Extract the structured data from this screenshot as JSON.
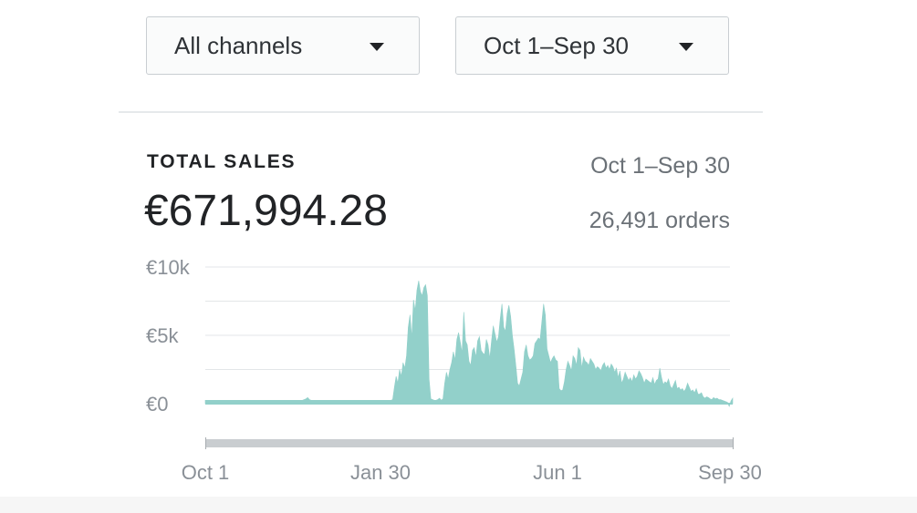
{
  "filters": {
    "channel": "All channels",
    "date_range": "Oct 1–Sep 30"
  },
  "card": {
    "title": "TOTAL SALES",
    "total": "€671,994.28",
    "range": "Oct 1–Sep 30",
    "orders": "26,491 orders"
  },
  "colors": {
    "area": "#92d0ca",
    "grid": "#e3e6e8",
    "axis_text": "#8a9097",
    "scrollbar": "#c9cdd0"
  },
  "chart_data": {
    "type": "area",
    "title": "TOTAL SALES",
    "xlabel": "",
    "ylabel": "",
    "x_tick_labels": [
      "Oct 1",
      "Jan 30",
      "Jun 1",
      "Sep 30"
    ],
    "y_tick_labels": [
      "€10k",
      "€5k",
      "€0"
    ],
    "y_ticks": [
      10000,
      5000,
      0
    ],
    "ylim": [
      -500,
      11500
    ],
    "grid": true,
    "legend": "none",
    "units": "EUR per day",
    "x_start": "Oct 1",
    "x_end": "Sep 30",
    "series": [
      {
        "values": [
          250,
          250,
          250,
          250,
          250,
          250,
          250,
          250,
          250,
          250,
          250,
          250,
          250,
          250,
          250,
          250,
          250,
          250,
          250,
          250,
          250,
          250,
          250,
          250,
          250,
          250,
          250,
          250,
          250,
          250,
          250,
          250,
          250,
          250,
          250,
          250,
          250,
          250,
          250,
          250,
          250,
          250,
          250,
          250,
          250,
          250,
          250,
          250,
          250,
          250,
          250,
          250,
          250,
          250,
          250,
          250,
          250,
          300,
          350,
          450,
          300,
          250,
          250,
          250,
          250,
          250,
          250,
          250,
          250,
          250,
          250,
          250,
          250,
          250,
          250,
          250,
          250,
          250,
          250,
          250,
          250,
          250,
          250,
          250,
          250,
          250,
          250,
          250,
          250,
          250,
          250,
          250,
          250,
          250,
          250,
          250,
          250,
          250,
          250,
          250,
          250,
          250,
          250,
          250,
          250,
          250,
          250,
          250,
          300,
          1200,
          2000,
          1500,
          2500,
          2000,
          3000,
          2600,
          3500,
          5600,
          6500,
          4800,
          7600,
          6800,
          8300,
          9000,
          8200,
          7900,
          8500,
          8700,
          7900,
          1800,
          350,
          300,
          250,
          250,
          300,
          400,
          250,
          350,
          1500,
          2300,
          1800,
          2500,
          3000,
          3800,
          3200,
          4700,
          5200,
          4500,
          3700,
          6700,
          4600,
          4300,
          3100,
          2800,
          3900,
          4100,
          3400,
          4600,
          4900,
          3900,
          3700,
          3600,
          4700,
          4300,
          3300,
          4600,
          5700,
          5100,
          4500,
          4900,
          6200,
          7300,
          5600,
          5300,
          6600,
          7200,
          6400,
          5000,
          4000,
          2800,
          1500,
          1300,
          1800,
          2300,
          3800,
          4300,
          3500,
          3200,
          3300,
          3500,
          4400,
          4600,
          4800,
          4700,
          6000,
          7300,
          6500,
          4000,
          3500,
          3000,
          3300,
          3500,
          3200,
          3100,
          1100,
          950,
          1000,
          1600,
          2500,
          3100,
          2800,
          2400,
          3500,
          3300,
          2800,
          4100,
          3900,
          2600,
          3400,
          3100,
          3000,
          2800,
          3300,
          3100,
          2900,
          2500,
          2700,
          2600,
          2400,
          2800,
          3000,
          2600,
          2800,
          2500,
          2900,
          2700,
          2300,
          2600,
          1900,
          2400,
          1500,
          1800,
          2300,
          2000,
          1700,
          1900,
          1600,
          2100,
          1800,
          2000,
          2400,
          2200,
          1900,
          1500,
          1800,
          1700,
          1600,
          1500,
          1900,
          1400,
          1700,
          1800,
          2600,
          1900,
          1400,
          1600,
          1500,
          1800,
          1300,
          1100,
          1400,
          1700,
          1100,
          1200,
          1000,
          1100,
          900,
          1100,
          1500,
          1200,
          900,
          1000,
          800,
          1100,
          700,
          700,
          800,
          500,
          400,
          500,
          450,
          350,
          300,
          450,
          350,
          400,
          300,
          300,
          250,
          200,
          150,
          100,
          -200,
          200,
          400
        ]
      }
    ]
  }
}
